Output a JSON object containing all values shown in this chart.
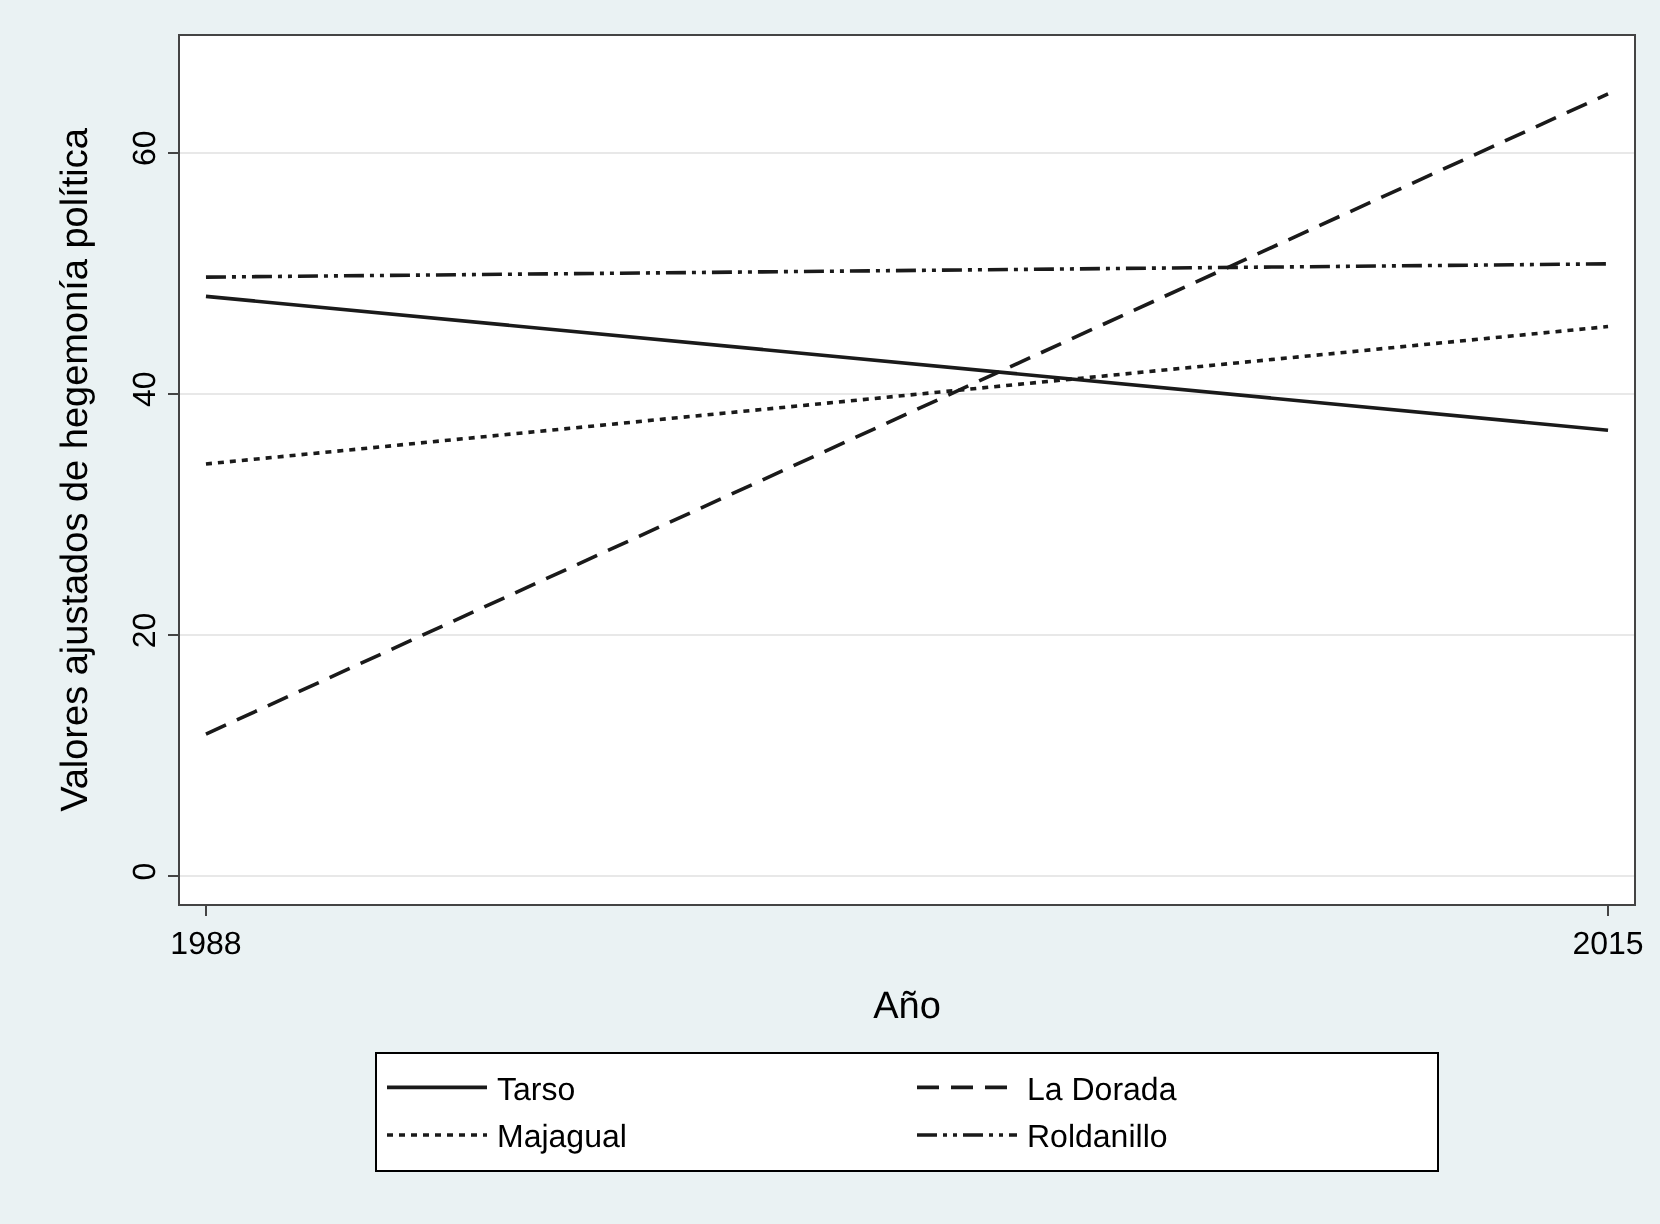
{
  "chart_data": {
    "type": "line",
    "xlabel": "Año",
    "ylabel": "Valores ajustados de hegemonía política",
    "x": [
      1988,
      2015
    ],
    "series": [
      {
        "name": "Tarso",
        "color": "#1a1a1a",
        "line_style": "solid",
        "values": [
          48.1,
          37.0
        ]
      },
      {
        "name": "La Dorada",
        "color": "#1a1a1a",
        "line_style": "dashed",
        "values": [
          11.8,
          64.9
        ]
      },
      {
        "name": "Majagual",
        "color": "#1a1a1a",
        "line_style": "dotted",
        "values": [
          34.2,
          45.6
        ]
      },
      {
        "name": "Roldanillo",
        "color": "#1a1a1a",
        "line_style": "dashdot",
        "values": [
          49.7,
          50.8
        ]
      }
    ],
    "xlim": [
      1987.5,
      2015.5
    ],
    "xticks": [
      1988,
      2015
    ],
    "ylim": [
      -2.3,
      69.7
    ],
    "yticks": [
      0,
      20,
      40,
      60
    ],
    "grid": "y",
    "legend": "bottom",
    "marker": "none"
  }
}
